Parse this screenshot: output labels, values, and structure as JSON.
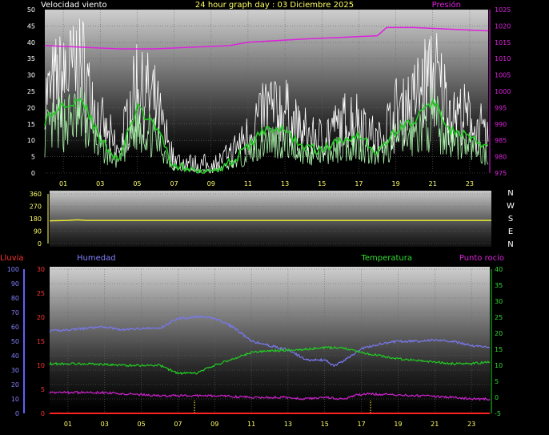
{
  "header": {
    "title": "24 hour graph day : 03 Diciembre 2025",
    "left_label": "Velocidad viento",
    "right_label": "Presión"
  },
  "x_ticks": [
    "01",
    "03",
    "05",
    "07",
    "09",
    "11",
    "13",
    "15",
    "17",
    "19",
    "21",
    "23"
  ],
  "colors": {
    "wind_gust": "#ffffff",
    "wind_avg": "#a8f0a8",
    "wind_trend": "#22cc22",
    "pressure": "#dd22dd",
    "direction": "#e8e830",
    "humidity": "#7878ee",
    "temperature": "#22cc22",
    "dewpoint": "#cc22cc",
    "rain": "#ff2222",
    "tick_left": "#ffffff",
    "tick_right": "#dd22dd",
    "xtick": "#ffff66"
  },
  "chart_data": [
    {
      "type": "line",
      "name": "wind-pressure",
      "title": "24 hour graph day : 03 Diciembre 2025",
      "y_left": {
        "label": "Velocidad viento",
        "ticks": [
          0,
          5,
          10,
          15,
          20,
          25,
          30,
          35,
          40,
          45,
          50
        ],
        "ylim": [
          0,
          50
        ]
      },
      "y_right": {
        "label": "Presión",
        "ticks": [
          975,
          980,
          985,
          990,
          995,
          1000,
          1005,
          1010,
          1015,
          1020,
          1025
        ],
        "ylim": [
          975,
          1025
        ]
      },
      "series": [
        {
          "key": "pressure",
          "x": [
            0,
            2,
            4,
            5,
            6,
            8,
            10,
            11,
            14,
            16,
            18,
            18.5,
            20,
            22,
            24
          ],
          "values": [
            1014,
            1013.5,
            1013,
            1013,
            1013,
            1013.5,
            1014,
            1015,
            1016,
            1016.5,
            1017,
            1019.5,
            1019.5,
            1019,
            1018.5
          ]
        },
        {
          "key": "wind_trend",
          "x": [
            0,
            1,
            2,
            3,
            4,
            5,
            6,
            7,
            8,
            9,
            10,
            11,
            12,
            13,
            14,
            15,
            16,
            17,
            18,
            19,
            20,
            21,
            22,
            23,
            24
          ],
          "values": [
            16,
            21,
            23,
            10,
            4,
            20,
            14,
            2,
            1,
            1,
            3,
            8,
            14,
            13,
            8,
            7,
            10,
            12,
            6,
            13,
            16,
            22,
            13,
            11,
            7
          ]
        }
      ]
    },
    {
      "type": "line",
      "name": "wind-direction",
      "y_left": {
        "ticks": [
          0,
          90,
          180,
          270,
          360
        ],
        "ylim": [
          0,
          360
        ]
      },
      "y_right": {
        "ticks": [
          "N",
          "W",
          "S",
          "E",
          "N"
        ]
      },
      "series": [
        {
          "key": "direction",
          "x": [
            0,
            1,
            1.5,
            2,
            24
          ],
          "values": [
            165,
            168,
            172,
            168,
            168
          ]
        }
      ]
    },
    {
      "type": "line",
      "name": "rain-humidity-temperature-dewpoint",
      "labels": {
        "rain": "Lluvia",
        "humidity": "Humedad",
        "temperature": "Temperatura",
        "dewpoint": "Punto rocío"
      },
      "y_humidity": {
        "ticks": [
          0,
          10,
          20,
          30,
          40,
          50,
          60,
          70,
          80,
          90,
          100
        ],
        "ylim": [
          0,
          100
        ]
      },
      "y_rain": {
        "ticks": [
          0,
          5,
          10,
          15,
          20,
          25,
          30
        ],
        "ylim": [
          0,
          30
        ]
      },
      "y_temp": {
        "ticks": [
          -5,
          0,
          5,
          10,
          15,
          20,
          25,
          30,
          35,
          40
        ],
        "ylim": [
          -5,
          40
        ]
      },
      "series": [
        {
          "key": "humidity",
          "x": [
            0,
            1,
            2,
            3,
            4,
            5,
            6,
            7,
            8,
            9,
            10,
            11,
            12,
            13,
            14,
            15,
            15.5,
            16,
            17,
            18,
            19,
            20,
            21,
            22,
            23,
            24
          ],
          "values": [
            57,
            58,
            59,
            60,
            58,
            59,
            59,
            66,
            67,
            66,
            60,
            50,
            47,
            44,
            37,
            37,
            33,
            36,
            45,
            48,
            50,
            50,
            51,
            50,
            47,
            46
          ]
        },
        {
          "key": "temperature",
          "x": [
            0,
            2,
            4,
            6,
            7,
            8,
            9,
            10,
            11,
            12,
            14,
            15,
            16,
            17,
            18,
            19,
            20,
            21,
            22,
            23,
            24
          ],
          "values": [
            10.5,
            10.5,
            10,
            10,
            7.5,
            7.5,
            10,
            12,
            14,
            14.5,
            15,
            15.5,
            15.5,
            14,
            13,
            12,
            11.5,
            11,
            10.5,
            10.5,
            11
          ]
        },
        {
          "key": "dewpoint",
          "x": [
            0,
            3,
            6,
            8,
            9,
            11,
            12,
            13,
            14,
            15,
            16,
            17,
            18,
            20,
            22,
            23,
            24
          ],
          "values": [
            1.5,
            1.5,
            0.5,
            0.5,
            0.5,
            0,
            0,
            0,
            -0.5,
            0,
            -0.5,
            1,
            1,
            0.5,
            0,
            -0.5,
            -0.5
          ]
        },
        {
          "key": "rain",
          "x": [
            0,
            24
          ],
          "values": [
            0,
            0
          ]
        }
      ]
    }
  ]
}
